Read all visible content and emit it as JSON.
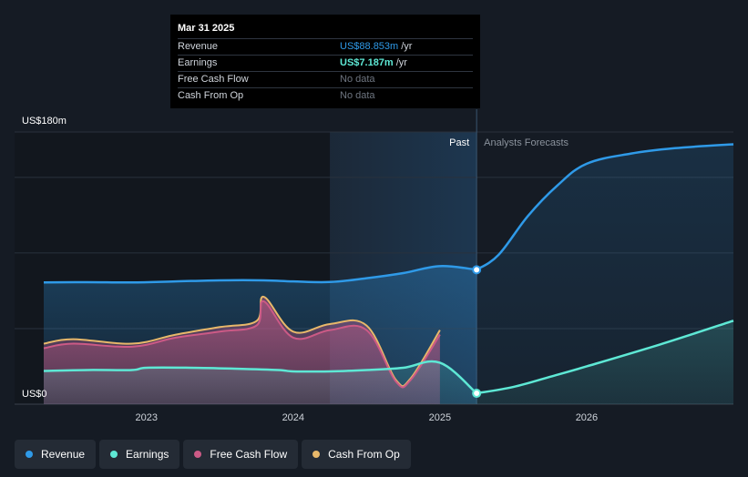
{
  "tooltip": {
    "date": "Mar 31 2025",
    "rows": [
      {
        "label": "Revenue",
        "value": "US$88.853m",
        "unit": "/yr"
      },
      {
        "label": "Earnings",
        "value": "US$7.187m",
        "unit": "/yr"
      },
      {
        "label": "Free Cash Flow",
        "value": "No data",
        "unit": ""
      },
      {
        "label": "Cash From Op",
        "value": "No data",
        "unit": ""
      }
    ]
  },
  "past_label": "Past",
  "forecast_label": "Analysts Forecasts",
  "legend": [
    {
      "label": "Revenue",
      "color": "#2f9ae8"
    },
    {
      "label": "Earnings",
      "color": "#5ee8d5"
    },
    {
      "label": "Free Cash Flow",
      "color": "#cc5a86"
    },
    {
      "label": "Cash From Op",
      "color": "#e8b86a"
    }
  ],
  "chart_data": {
    "type": "line",
    "ylabel_top": "US$180m",
    "ylabel_bottom": "US$0",
    "ylim": [
      0,
      180
    ],
    "xlim": [
      2022.3,
      2027.0
    ],
    "x_ticks": [
      2023,
      2024,
      2025,
      2026
    ],
    "x_tick_labels": [
      "2023",
      "2024",
      "2025",
      "2026"
    ],
    "gridlines_y": [
      50,
      100,
      150,
      180
    ],
    "today_x": 2025.25,
    "highlight_start_x": 2024.25,
    "grid": true,
    "legend_position": "bottom-left",
    "series": [
      {
        "name": "Revenue",
        "color": "#2f9ae8",
        "fill": true,
        "points": [
          [
            2022.3,
            80.5
          ],
          [
            2022.6,
            80.7
          ],
          [
            2022.9,
            80.5
          ],
          [
            2023.2,
            81.2
          ],
          [
            2023.5,
            81.9
          ],
          [
            2023.8,
            81.9
          ],
          [
            2024.0,
            81.2
          ],
          [
            2024.25,
            80.8
          ],
          [
            2024.5,
            83.3
          ],
          [
            2024.75,
            86.7
          ],
          [
            2025.0,
            91.3
          ],
          [
            2025.25,
            88.9
          ]
        ]
      },
      {
        "name": "Revenue",
        "color": "#2f9ae8",
        "dashed": false,
        "forecast": true,
        "points": [
          [
            2025.25,
            88.9
          ],
          [
            2025.4,
            98.8
          ],
          [
            2025.6,
            124.5
          ],
          [
            2025.8,
            144.6
          ],
          [
            2026.0,
            159.0
          ],
          [
            2026.3,
            165.7
          ],
          [
            2026.6,
            169.3
          ],
          [
            2027.0,
            171.9
          ]
        ]
      },
      {
        "name": "Earnings",
        "color": "#5ee8d5",
        "fill": true,
        "points": [
          [
            2022.3,
            22.0
          ],
          [
            2022.6,
            22.6
          ],
          [
            2022.9,
            22.6
          ],
          [
            2023.0,
            24.1
          ],
          [
            2023.3,
            24.1
          ],
          [
            2023.6,
            23.5
          ],
          [
            2023.9,
            22.6
          ],
          [
            2024.0,
            21.7
          ],
          [
            2024.25,
            21.7
          ],
          [
            2024.5,
            22.6
          ],
          [
            2024.75,
            24.1
          ],
          [
            2025.0,
            27.4
          ],
          [
            2025.25,
            7.2
          ]
        ]
      },
      {
        "name": "Earnings",
        "color": "#5ee8d5",
        "forecast": true,
        "points": [
          [
            2025.25,
            7.2
          ],
          [
            2025.5,
            11.4
          ],
          [
            2025.75,
            18.1
          ],
          [
            2026.0,
            25.0
          ],
          [
            2026.5,
            39.5
          ],
          [
            2027.0,
            55.2
          ]
        ]
      },
      {
        "name": "Free Cash Flow",
        "color": "#cc5a86",
        "fill": true,
        "points": [
          [
            2022.3,
            37.0
          ],
          [
            2022.5,
            40.0
          ],
          [
            2022.9,
            38.0
          ],
          [
            2023.2,
            44.0
          ],
          [
            2023.5,
            48.0
          ],
          [
            2023.75,
            52.0
          ],
          [
            2023.8,
            68.0
          ],
          [
            2024.0,
            44.0
          ],
          [
            2024.25,
            49.0
          ],
          [
            2024.5,
            49.0
          ],
          [
            2024.7,
            15.0
          ],
          [
            2024.8,
            16.0
          ],
          [
            2025.0,
            46.0
          ]
        ]
      },
      {
        "name": "Cash From Op",
        "color": "#e8b86a",
        "fill": true,
        "points": [
          [
            2022.3,
            40.0
          ],
          [
            2022.5,
            43.0
          ],
          [
            2022.9,
            40.0
          ],
          [
            2023.2,
            46.0
          ],
          [
            2023.5,
            51.0
          ],
          [
            2023.75,
            55.0
          ],
          [
            2023.8,
            71.0
          ],
          [
            2024.0,
            48.0
          ],
          [
            2024.25,
            53.0
          ],
          [
            2024.5,
            52.0
          ],
          [
            2024.7,
            16.0
          ],
          [
            2024.8,
            17.0
          ],
          [
            2025.0,
            49.0
          ]
        ]
      }
    ]
  }
}
